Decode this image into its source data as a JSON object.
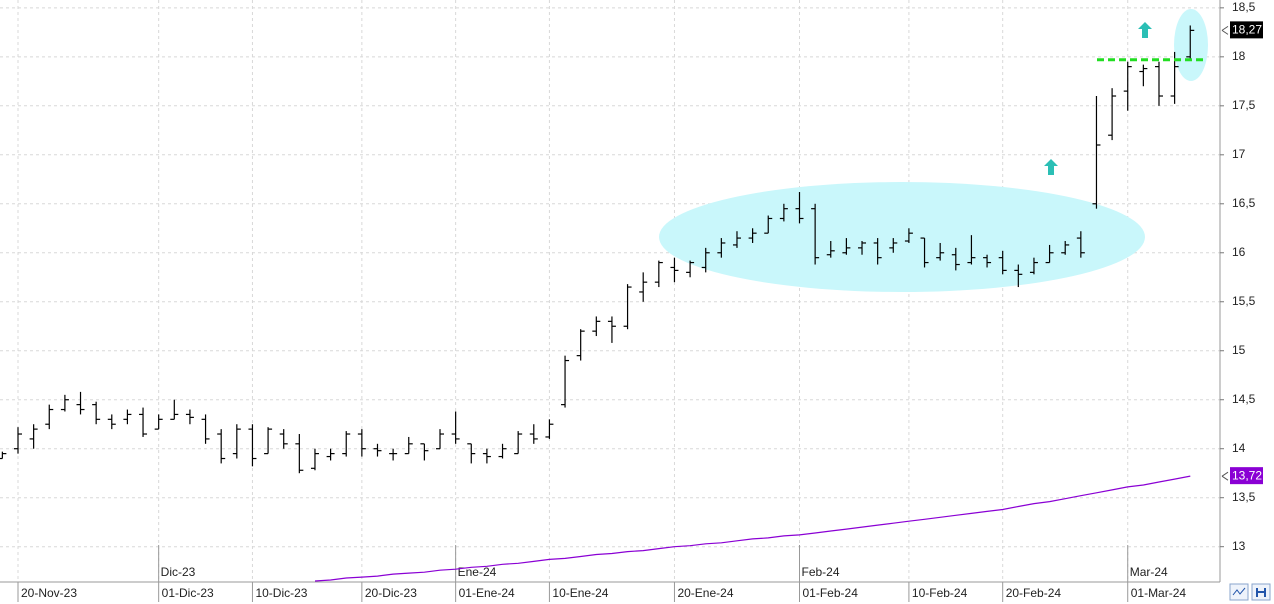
{
  "chart_data": {
    "type": "ohlc",
    "categories": [
      null,
      "20-Nov-23",
      null,
      null,
      null,
      null,
      null,
      null,
      null,
      null,
      "01-Dic-23",
      null,
      null,
      null,
      null,
      null,
      "10-Dic-23",
      null,
      null,
      null,
      null,
      null,
      null,
      "20-Dic-23",
      null,
      null,
      null,
      null,
      null,
      "01-Ene-24",
      null,
      null,
      null,
      null,
      null,
      "10-Ene-24",
      null,
      null,
      null,
      null,
      null,
      null,
      null,
      "20-Ene-24",
      null,
      null,
      null,
      null,
      null,
      null,
      null,
      "01-Feb-24",
      null,
      null,
      null,
      null,
      null,
      null,
      "10-Feb-24",
      null,
      null,
      null,
      null,
      null,
      "20-Feb-24",
      null,
      null,
      null,
      null,
      null,
      null,
      null,
      "01-Mar-24",
      null,
      null,
      null,
      null
    ],
    "month_categories": [
      null,
      null,
      null,
      null,
      null,
      null,
      null,
      null,
      null,
      null,
      "Dic-23",
      null,
      null,
      null,
      null,
      null,
      null,
      null,
      null,
      null,
      null,
      null,
      null,
      null,
      null,
      null,
      null,
      null,
      null,
      "Ene-24",
      null,
      null,
      null,
      null,
      null,
      null,
      null,
      null,
      null,
      null,
      null,
      null,
      null,
      null,
      null,
      null,
      null,
      null,
      null,
      null,
      null,
      "Feb-24",
      null,
      null,
      null,
      null,
      null,
      null,
      null,
      null,
      null,
      null,
      null,
      null,
      null,
      null,
      null,
      null,
      null,
      null,
      null,
      null,
      "Mar-24",
      null,
      null,
      null,
      null
    ],
    "price": {
      "color": "#000000",
      "last_label": "18,27",
      "open": [
        13.9,
        14.0,
        14.1,
        14.25,
        14.4,
        14.45,
        14.45,
        14.3,
        14.3,
        14.35,
        14.2,
        14.3,
        14.35,
        14.3,
        14.15,
        13.95,
        14.2,
        13.95,
        14.15,
        14.05,
        13.8,
        13.92,
        13.95,
        14.15,
        14.0,
        13.95,
        13.95,
        14.05,
        14.0,
        14.15,
        14.05,
        13.95,
        13.92,
        13.95,
        14.15,
        14.12,
        14.45,
        14.95,
        15.2,
        15.3,
        15.25,
        15.6,
        15.7,
        15.85,
        15.8,
        15.85,
        16.0,
        16.08,
        16.15,
        16.2,
        16.35,
        16.45,
        16.45,
        15.98,
        16.0,
        16.05,
        16.1,
        16.05,
        16.12,
        16.15,
        15.95,
        15.98,
        15.9,
        15.95,
        15.95,
        15.82,
        15.8,
        15.9,
        16.0,
        16.15,
        16.5,
        17.2,
        17.65,
        17.85,
        17.9,
        17.6,
        18.0
      ],
      "high": [
        13.97,
        14.22,
        14.25,
        14.45,
        14.55,
        14.58,
        14.48,
        14.35,
        14.4,
        14.42,
        14.35,
        14.5,
        14.4,
        14.35,
        14.2,
        14.25,
        14.25,
        14.22,
        14.2,
        14.15,
        14.0,
        14.0,
        14.18,
        14.2,
        14.05,
        14.0,
        14.12,
        14.05,
        14.2,
        14.38,
        14.05,
        14.0,
        14.05,
        14.18,
        14.25,
        14.3,
        14.95,
        15.22,
        15.35,
        15.35,
        15.68,
        15.8,
        15.92,
        15.95,
        15.92,
        16.05,
        16.15,
        16.22,
        16.25,
        16.38,
        16.5,
        16.62,
        16.5,
        16.12,
        16.15,
        16.12,
        16.15,
        16.15,
        16.25,
        16.15,
        16.1,
        16.05,
        16.18,
        15.98,
        16.02,
        15.88,
        15.95,
        16.08,
        16.12,
        16.22,
        17.6,
        17.68,
        17.95,
        17.92,
        17.95,
        18.05,
        18.32
      ],
      "low": [
        13.9,
        13.95,
        14.0,
        14.2,
        14.38,
        14.35,
        14.25,
        14.2,
        14.25,
        14.12,
        14.2,
        14.3,
        14.25,
        14.05,
        13.85,
        13.9,
        13.82,
        13.95,
        14.0,
        13.75,
        13.78,
        13.88,
        13.92,
        13.92,
        13.92,
        13.88,
        13.95,
        13.88,
        14.0,
        14.05,
        13.85,
        13.85,
        13.9,
        13.95,
        14.05,
        14.1,
        14.42,
        14.9,
        15.15,
        15.08,
        15.22,
        15.5,
        15.65,
        15.7,
        15.75,
        15.8,
        15.95,
        16.05,
        16.1,
        16.2,
        16.32,
        16.3,
        15.88,
        15.95,
        15.98,
        15.98,
        15.88,
        16.0,
        16.1,
        15.85,
        15.92,
        15.82,
        15.88,
        15.85,
        15.78,
        15.65,
        15.78,
        15.9,
        15.98,
        15.95,
        16.45,
        17.15,
        17.45,
        17.7,
        17.5,
        17.52,
        17.98
      ],
      "close": [
        13.95,
        14.15,
        14.2,
        14.4,
        14.5,
        14.4,
        14.3,
        14.25,
        14.35,
        14.15,
        14.3,
        14.35,
        14.32,
        14.1,
        13.9,
        14.2,
        13.9,
        14.2,
        14.05,
        13.78,
        13.95,
        13.95,
        14.15,
        14.0,
        13.98,
        13.95,
        14.05,
        13.98,
        14.15,
        14.1,
        13.95,
        13.92,
        14.0,
        14.15,
        14.1,
        14.25,
        14.9,
        15.2,
        15.3,
        15.25,
        15.65,
        15.7,
        15.9,
        15.82,
        15.9,
        16.0,
        16.1,
        16.15,
        16.2,
        16.35,
        16.45,
        16.35,
        15.95,
        16.02,
        16.05,
        16.1,
        15.95,
        16.1,
        16.2,
        15.9,
        16.0,
        15.88,
        15.95,
        15.9,
        15.82,
        15.78,
        15.9,
        16.0,
        16.08,
        16.0,
        17.1,
        17.6,
        17.9,
        17.88,
        17.6,
        17.9,
        18.27
      ]
    },
    "moving_average": {
      "color": "#8a00d4",
      "last_label": "13,72",
      "values": [
        null,
        null,
        null,
        null,
        null,
        null,
        null,
        null,
        null,
        null,
        null,
        null,
        null,
        null,
        null,
        null,
        null,
        null,
        null,
        null,
        12.65,
        12.66,
        12.68,
        12.69,
        12.7,
        12.72,
        12.73,
        12.74,
        12.76,
        12.77,
        12.79,
        12.8,
        12.82,
        12.83,
        12.85,
        12.87,
        12.88,
        12.9,
        12.92,
        12.93,
        12.95,
        12.96,
        12.98,
        13.0,
        13.01,
        13.03,
        13.04,
        13.06,
        13.08,
        13.09,
        13.11,
        13.12,
        13.14,
        13.16,
        13.18,
        13.2,
        13.22,
        13.24,
        13.26,
        13.28,
        13.3,
        13.32,
        13.34,
        13.36,
        13.38,
        13.41,
        13.44,
        13.46,
        13.49,
        13.52,
        13.55,
        13.58,
        13.61,
        13.63,
        13.66,
        13.69,
        13.72
      ]
    },
    "hline": {
      "value": 17.97,
      "color": "#22dd22"
    },
    "ylim": [
      12.66,
      18.58
    ],
    "yticks": [
      {
        "value": 18.5,
        "label": "18,5"
      },
      18,
      {
        "value": 17.5,
        "label": "17,5"
      },
      17,
      {
        "value": 16.5,
        "label": "16,5"
      },
      16,
      {
        "value": 15.5,
        "label": "15,5"
      },
      15,
      {
        "value": 14.5,
        "label": "14,5"
      },
      14,
      {
        "value": 13.5,
        "label": "13,5"
      },
      13
    ],
    "grid": true
  }
}
